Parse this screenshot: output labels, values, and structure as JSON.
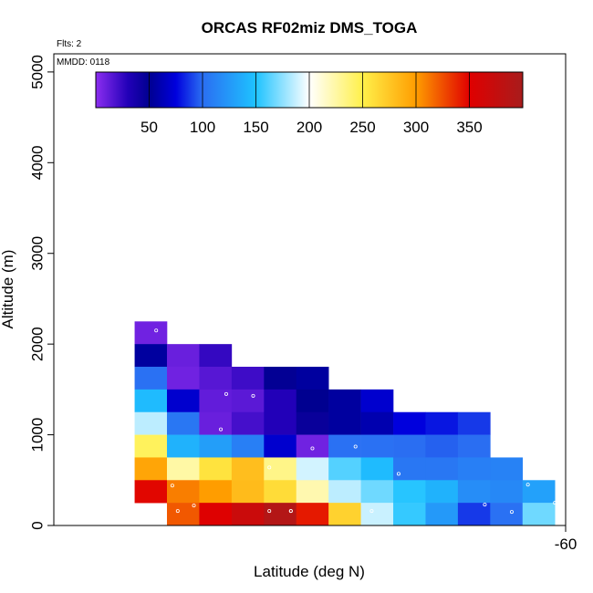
{
  "chart_data": {
    "type": "heatmap",
    "title": "ORCAS RF02miz DMS_TOGA",
    "annotations": {
      "flights": "Flts: 2",
      "date": "MMDD: 0118"
    },
    "xlabel": "Latitude (deg N)",
    "ylabel": "Altitude (m)",
    "xlim": [
      -64.75,
      -60
    ],
    "ylim": [
      0,
      5200
    ],
    "x_tick_labels": [
      "-60"
    ],
    "x_tick_values": [
      -60
    ],
    "y_tick_values": [
      0,
      1000,
      2000,
      3000,
      4000,
      5000
    ],
    "y_tick_labels": [
      "0",
      "1000",
      "2000",
      "3000",
      "4000",
      "5000"
    ],
    "cell_width_deg": 0.3,
    "cell_height_m": 250,
    "colorbar": {
      "min": 0,
      "max": 400,
      "ticks": [
        50,
        100,
        150,
        200,
        250,
        300,
        350
      ],
      "tick_labels": [
        "50",
        "100",
        "150",
        "200",
        "250",
        "300",
        "350"
      ],
      "stops": [
        {
          "v": 0,
          "color": "#8c2ef0"
        },
        {
          "v": 30,
          "color": "#2200b8"
        },
        {
          "v": 50,
          "color": "#000090"
        },
        {
          "v": 75,
          "color": "#0000dd"
        },
        {
          "v": 100,
          "color": "#2a6ef2"
        },
        {
          "v": 150,
          "color": "#1ec3ff"
        },
        {
          "v": 200,
          "color": "#ffffff"
        },
        {
          "v": 250,
          "color": "#fff04a"
        },
        {
          "v": 300,
          "color": "#ff9d00"
        },
        {
          "v": 350,
          "color": "#e00000"
        },
        {
          "v": 400,
          "color": "#a81c1c"
        }
      ]
    },
    "cells": [
      {
        "lat": -63.85,
        "alt": 2125,
        "value": 8
      },
      {
        "lat": -63.85,
        "alt": 1875,
        "value": 55
      },
      {
        "lat": -63.85,
        "alt": 1625,
        "value": 102
      },
      {
        "lat": -63.85,
        "alt": 1375,
        "value": 145
      },
      {
        "lat": -63.85,
        "alt": 1125,
        "value": 185
      },
      {
        "lat": -63.85,
        "alt": 875,
        "value": 245
      },
      {
        "lat": -63.85,
        "alt": 625,
        "value": 295
      },
      {
        "lat": -63.85,
        "alt": 375,
        "value": 348
      },
      {
        "lat": -63.55,
        "alt": 1875,
        "value": 10
      },
      {
        "lat": -63.55,
        "alt": 1625,
        "value": 8
      },
      {
        "lat": -63.55,
        "alt": 1375,
        "value": 70
      },
      {
        "lat": -63.55,
        "alt": 1125,
        "value": 105
      },
      {
        "lat": -63.55,
        "alt": 875,
        "value": 140
      },
      {
        "lat": -63.55,
        "alt": 625,
        "value": 225
      },
      {
        "lat": -63.55,
        "alt": 375,
        "value": 310
      },
      {
        "lat": -63.55,
        "alt": 125,
        "value": 322
      },
      {
        "lat": -63.25,
        "alt": 1875,
        "value": 25
      },
      {
        "lat": -63.25,
        "alt": 1625,
        "value": 15
      },
      {
        "lat": -63.25,
        "alt": 1375,
        "value": 12
      },
      {
        "lat": -63.25,
        "alt": 1125,
        "value": 10
      },
      {
        "lat": -63.25,
        "alt": 875,
        "value": 128
      },
      {
        "lat": -63.25,
        "alt": 625,
        "value": 258
      },
      {
        "lat": -63.25,
        "alt": 375,
        "value": 300
      },
      {
        "lat": -63.25,
        "alt": 125,
        "value": 352
      },
      {
        "lat": -62.95,
        "alt": 1625,
        "value": 22
      },
      {
        "lat": -62.95,
        "alt": 1375,
        "value": 14
      },
      {
        "lat": -62.95,
        "alt": 1125,
        "value": 20
      },
      {
        "lat": -62.95,
        "alt": 875,
        "value": 110
      },
      {
        "lat": -62.95,
        "alt": 625,
        "value": 280
      },
      {
        "lat": -62.95,
        "alt": 375,
        "value": 282
      },
      {
        "lat": -62.95,
        "alt": 125,
        "value": 370
      },
      {
        "lat": -62.65,
        "alt": 1625,
        "value": 48
      },
      {
        "lat": -62.65,
        "alt": 1375,
        "value": 30
      },
      {
        "lat": -62.65,
        "alt": 1125,
        "value": 30
      },
      {
        "lat": -62.65,
        "alt": 875,
        "value": 70
      },
      {
        "lat": -62.65,
        "alt": 625,
        "value": 233
      },
      {
        "lat": -62.65,
        "alt": 375,
        "value": 262
      },
      {
        "lat": -62.65,
        "alt": 125,
        "value": 390
      },
      {
        "lat": -62.35,
        "alt": 1625,
        "value": 55
      },
      {
        "lat": -62.35,
        "alt": 1375,
        "value": 50
      },
      {
        "lat": -62.35,
        "alt": 1125,
        "value": 45
      },
      {
        "lat": -62.35,
        "alt": 875,
        "value": 8
      },
      {
        "lat": -62.35,
        "alt": 625,
        "value": 190
      },
      {
        "lat": -62.35,
        "alt": 375,
        "value": 222
      },
      {
        "lat": -62.35,
        "alt": 125,
        "value": 342
      },
      {
        "lat": -62.05,
        "alt": 1375,
        "value": 55
      },
      {
        "lat": -62.05,
        "alt": 1125,
        "value": 55
      },
      {
        "lat": -62.05,
        "alt": 875,
        "value": 102
      },
      {
        "lat": -62.05,
        "alt": 625,
        "value": 162
      },
      {
        "lat": -62.05,
        "alt": 375,
        "value": 185
      },
      {
        "lat": -62.05,
        "alt": 125,
        "value": 268
      },
      {
        "lat": -61.75,
        "alt": 1375,
        "value": 70
      },
      {
        "lat": -61.75,
        "alt": 1125,
        "value": 60
      },
      {
        "lat": -61.75,
        "alt": 875,
        "value": 102
      },
      {
        "lat": -61.75,
        "alt": 625,
        "value": 145
      },
      {
        "lat": -61.75,
        "alt": 375,
        "value": 168
      },
      {
        "lat": -61.75,
        "alt": 125,
        "value": 188
      },
      {
        "lat": -61.45,
        "alt": 1125,
        "value": 75
      },
      {
        "lat": -61.45,
        "alt": 875,
        "value": 100
      },
      {
        "lat": -61.45,
        "alt": 625,
        "value": 105
      },
      {
        "lat": -61.45,
        "alt": 375,
        "value": 152
      },
      {
        "lat": -61.45,
        "alt": 125,
        "value": 155
      },
      {
        "lat": -61.15,
        "alt": 1125,
        "value": 80
      },
      {
        "lat": -61.15,
        "alt": 875,
        "value": 97
      },
      {
        "lat": -61.15,
        "alt": 625,
        "value": 105
      },
      {
        "lat": -61.15,
        "alt": 375,
        "value": 140
      },
      {
        "lat": -61.15,
        "alt": 125,
        "value": 125
      },
      {
        "lat": -60.85,
        "alt": 1125,
        "value": 88
      },
      {
        "lat": -60.85,
        "alt": 875,
        "value": 100
      },
      {
        "lat": -60.85,
        "alt": 625,
        "value": 110
      },
      {
        "lat": -60.85,
        "alt": 375,
        "value": 118
      },
      {
        "lat": -60.85,
        "alt": 125,
        "value": 88
      },
      {
        "lat": -60.55,
        "alt": 625,
        "value": 112
      },
      {
        "lat": -60.55,
        "alt": 375,
        "value": 115
      },
      {
        "lat": -60.55,
        "alt": 125,
        "value": 102
      },
      {
        "lat": -60.25,
        "alt": 375,
        "value": 130
      },
      {
        "lat": -60.25,
        "alt": 125,
        "value": 168
      }
    ],
    "observations": [
      {
        "lat": -63.8,
        "alt": 2150
      },
      {
        "lat": -63.15,
        "alt": 1450
      },
      {
        "lat": -62.9,
        "alt": 1430
      },
      {
        "lat": -63.2,
        "alt": 1060
      },
      {
        "lat": -62.35,
        "alt": 850
      },
      {
        "lat": -62.75,
        "alt": 640
      },
      {
        "lat": -61.95,
        "alt": 870
      },
      {
        "lat": -61.55,
        "alt": 570
      },
      {
        "lat": -60.65,
        "alt": 1080
      },
      {
        "lat": -60.35,
        "alt": 450
      },
      {
        "lat": -60.1,
        "alt": 250
      },
      {
        "lat": -63.65,
        "alt": 440
      },
      {
        "lat": -63.45,
        "alt": 220
      },
      {
        "lat": -63.6,
        "alt": 160
      },
      {
        "lat": -62.75,
        "alt": 160
      },
      {
        "lat": -62.55,
        "alt": 160
      },
      {
        "lat": -62.55,
        "alt": 160
      },
      {
        "lat": -61.8,
        "alt": 160
      },
      {
        "lat": -60.75,
        "alt": 230
      },
      {
        "lat": -60.5,
        "alt": 150
      }
    ]
  }
}
